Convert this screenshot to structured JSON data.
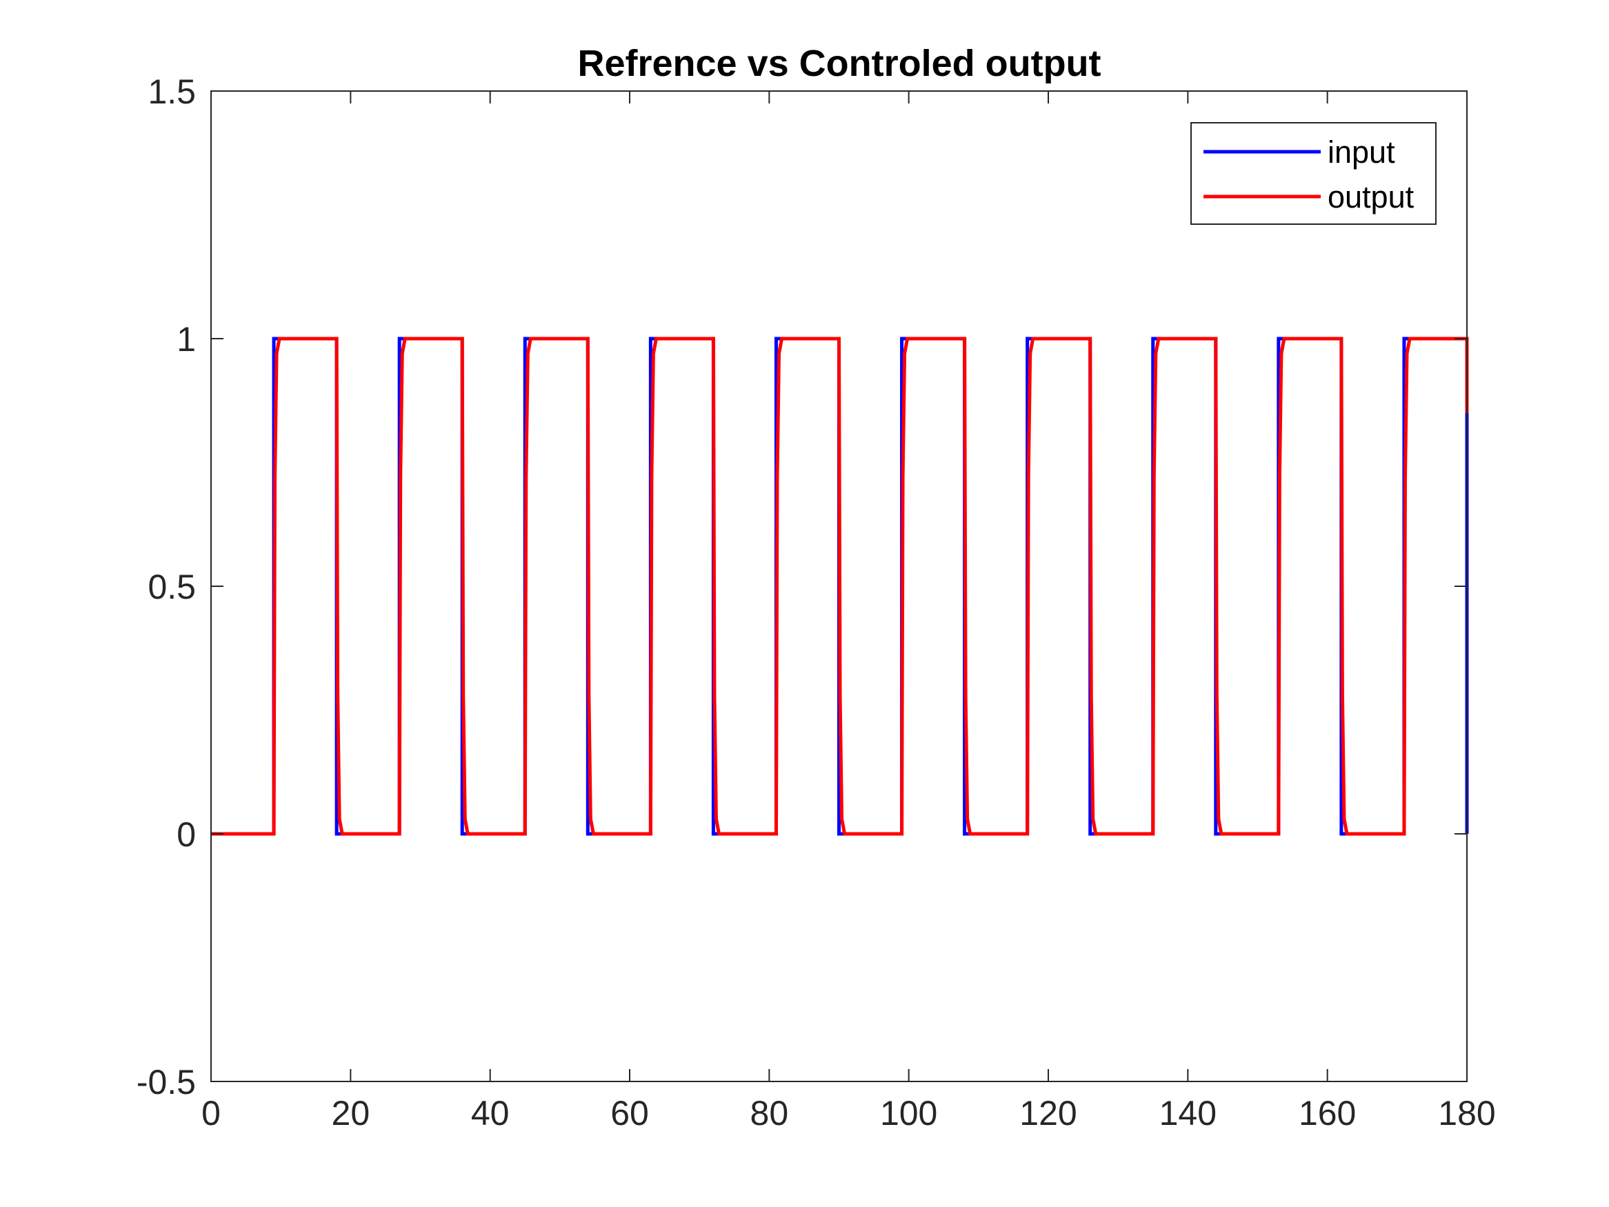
{
  "chart_data": {
    "type": "line",
    "title": "Refrence vs Controled output",
    "xlabel": "",
    "ylabel": "",
    "xlim": [
      0,
      180
    ],
    "ylim": [
      -0.5,
      1.5
    ],
    "xticks": [
      0,
      20,
      40,
      60,
      80,
      100,
      120,
      140,
      160,
      180
    ],
    "xtick_labels": [
      "0",
      "20",
      "40",
      "60",
      "80",
      "100",
      "120",
      "140",
      "160",
      "180"
    ],
    "yticks": [
      -0.5,
      0,
      0.5,
      1,
      1.5
    ],
    "ytick_labels": [
      "-0.5",
      "0",
      "0.5",
      "1",
      "1.5"
    ],
    "grid": false,
    "legend_position": "top-right",
    "series": [
      {
        "name": "input",
        "color": "#0000ff",
        "x": [
          0,
          9,
          9,
          18,
          18,
          27,
          27,
          36,
          36,
          45,
          45,
          54,
          54,
          63,
          63,
          72,
          72,
          81,
          81,
          90,
          90,
          99,
          99,
          108,
          108,
          117,
          117,
          126,
          126,
          135,
          135,
          144,
          144,
          153,
          153,
          162,
          162,
          171,
          171,
          180,
          180
        ],
        "y": [
          0,
          0,
          1,
          1,
          0,
          0,
          1,
          1,
          0,
          0,
          1,
          1,
          0,
          0,
          1,
          1,
          0,
          0,
          1,
          1,
          0,
          0,
          1,
          1,
          0,
          0,
          1,
          1,
          0,
          0,
          1,
          1,
          0,
          0,
          1,
          1,
          0,
          0,
          1,
          1,
          0
        ]
      },
      {
        "name": "output",
        "color": "#ff0000",
        "x": [
          0,
          9,
          9.15,
          9.4,
          9.8,
          18,
          18.15,
          18.4,
          18.8,
          27,
          27.15,
          27.4,
          27.8,
          36,
          36.15,
          36.4,
          36.8,
          45,
          45.15,
          45.4,
          45.8,
          54,
          54.15,
          54.4,
          54.8,
          63,
          63.15,
          63.4,
          63.8,
          72,
          72.15,
          72.4,
          72.8,
          81,
          81.15,
          81.4,
          81.8,
          90,
          90.15,
          90.4,
          90.8,
          99,
          99.15,
          99.4,
          99.8,
          108,
          108.15,
          108.4,
          108.8,
          117,
          117.15,
          117.4,
          117.8,
          126,
          126.15,
          126.4,
          126.8,
          135,
          135.15,
          135.4,
          135.8,
          144,
          144.15,
          144.4,
          144.8,
          153,
          153.15,
          153.4,
          153.8,
          162,
          162.15,
          162.4,
          162.8,
          171,
          171.15,
          171.4,
          171.8,
          180,
          180
        ],
        "y": [
          0,
          0,
          0.72,
          0.97,
          1,
          1,
          0.28,
          0.03,
          0,
          0,
          0.72,
          0.97,
          1,
          1,
          0.28,
          0.03,
          0,
          0,
          0.72,
          0.97,
          1,
          1,
          0.28,
          0.03,
          0,
          0,
          0.72,
          0.97,
          1,
          1,
          0.28,
          0.03,
          0,
          0,
          0.72,
          0.97,
          1,
          1,
          0.28,
          0.03,
          0,
          0,
          0.72,
          0.97,
          1,
          1,
          0.28,
          0.03,
          0,
          0,
          0.72,
          0.97,
          1,
          1,
          0.28,
          0.03,
          0,
          0,
          0.72,
          0.97,
          1,
          1,
          0.28,
          0.03,
          0,
          0,
          0.72,
          0.97,
          1,
          1,
          0.28,
          0.03,
          0,
          0,
          0.72,
          0.97,
          1,
          1,
          0.85
        ]
      }
    ]
  }
}
